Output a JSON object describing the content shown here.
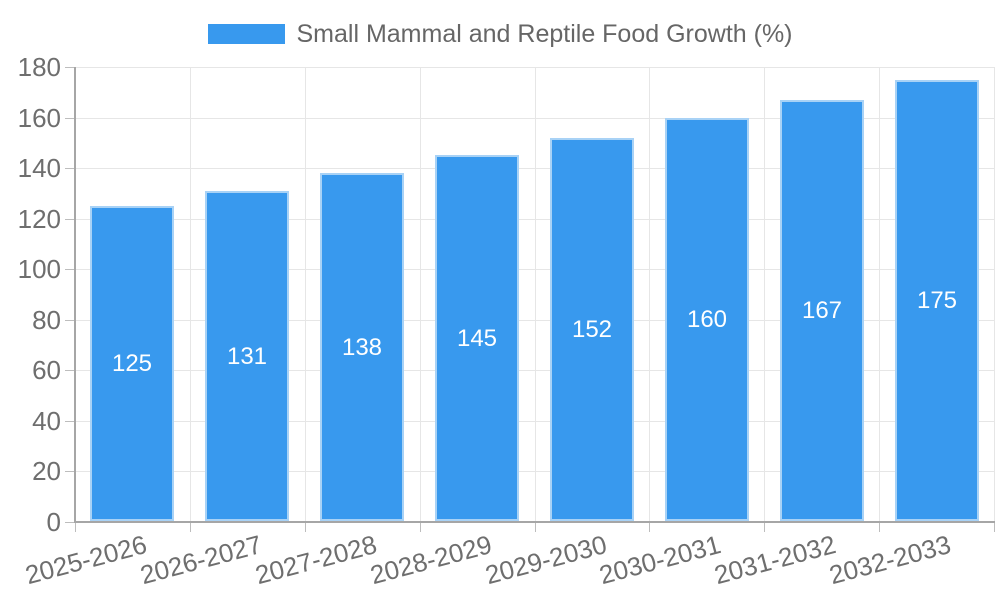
{
  "chart_data": {
    "type": "bar",
    "title": "Small Mammal and Reptile Food Growth (%)",
    "categories": [
      "2025-2026",
      "2026-2027",
      "2027-2028",
      "2028-2029",
      "2029-2030",
      "2030-2031",
      "2031-2032",
      "2032-2033"
    ],
    "values": [
      125,
      131,
      138,
      145,
      152,
      160,
      167,
      175
    ],
    "data_labels_shown": true,
    "xlabel": "",
    "ylabel": "",
    "ylim": [
      0,
      180
    ],
    "ytick_step": 20,
    "ytick_labels": [
      "0",
      "20",
      "40",
      "60",
      "80",
      "100",
      "120",
      "140",
      "160",
      "180"
    ],
    "grid": "on",
    "legend_position": "top-center",
    "colors": {
      "bar_fill": "#3899ee",
      "bar_border": "#a8d2f6",
      "gridline": "#e6e6e6",
      "axis_line": "#a6a6a6",
      "tick_mark": "#bdbdbd",
      "axis_text": "#6e6e6e",
      "legend_text": "#666666",
      "bar_value_text": "#ffffff",
      "background": "#ffffff"
    }
  }
}
